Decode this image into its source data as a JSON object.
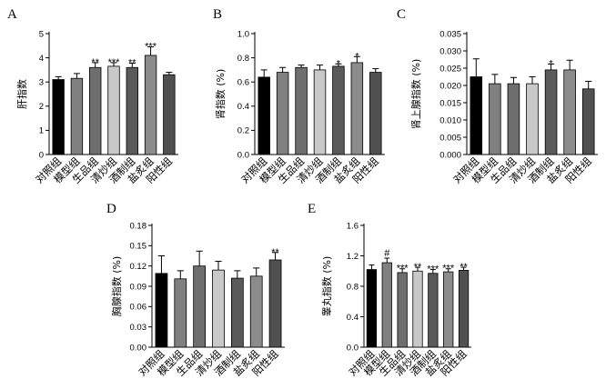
{
  "colors": [
    "#000000",
    "#808080",
    "#6e6e6e",
    "#c8c8c8",
    "#5a5a5a",
    "#8c8c8c",
    "#505050"
  ],
  "chart_data": [
    {
      "type": "bar",
      "panel": "A",
      "ylabel": "肝指数",
      "categories": [
        "对照组",
        "模型组",
        "生品组",
        "清炒组",
        "酒制组",
        "盐炙组",
        "阳性组"
      ],
      "values": [
        3.1,
        3.15,
        3.6,
        3.65,
        3.6,
        4.1,
        3.3
      ],
      "errors": [
        0.12,
        0.2,
        0.2,
        0.15,
        0.18,
        0.35,
        0.1
      ],
      "significance": [
        "",
        "",
        "**",
        "***",
        "**",
        "***",
        ""
      ],
      "ylim": [
        0,
        5
      ],
      "yticks": [
        0,
        1,
        2,
        3,
        4,
        5
      ],
      "ytick_labels": [
        "0",
        "1",
        "2",
        "3",
        "4",
        "5"
      ]
    },
    {
      "type": "bar",
      "panel": "B",
      "ylabel": "肾指数 (%)",
      "categories": [
        "对照组",
        "模型组",
        "生品组",
        "清炒组",
        "酒制组",
        "盐炙组",
        "阳性组"
      ],
      "values": [
        0.64,
        0.68,
        0.72,
        0.7,
        0.73,
        0.76,
        0.68
      ],
      "errors": [
        0.06,
        0.04,
        0.02,
        0.04,
        0.02,
        0.05,
        0.03
      ],
      "significance": [
        "",
        "",
        "",
        "",
        "*",
        "*",
        ""
      ],
      "ylim": [
        0,
        1.0
      ],
      "yticks": [
        0,
        0.2,
        0.4,
        0.6,
        0.8,
        1.0
      ],
      "ytick_labels": [
        "0.0",
        "0.2",
        "0.4",
        "0.6",
        "0.8",
        "1.0"
      ]
    },
    {
      "type": "bar",
      "panel": "C",
      "ylabel": "肾上腺指数 (%)",
      "categories": [
        "对照组",
        "模型组",
        "生品组",
        "清炒组",
        "酒制组",
        "盐炙组",
        "阳性组"
      ],
      "values": [
        0.0225,
        0.0205,
        0.0205,
        0.0205,
        0.0245,
        0.0245,
        0.019
      ],
      "errors": [
        0.0052,
        0.0027,
        0.0018,
        0.002,
        0.0017,
        0.0028,
        0.0022
      ],
      "significance": [
        "",
        "",
        "",
        "",
        "*",
        "",
        ""
      ],
      "ylim": [
        0,
        0.035
      ],
      "yticks": [
        0,
        0.005,
        0.01,
        0.015,
        0.02,
        0.025,
        0.03,
        0.035
      ],
      "ytick_labels": [
        "0.000",
        "0.005",
        "0.010",
        "0.015",
        "0.020",
        "0.025",
        "0.030",
        "0.035"
      ]
    },
    {
      "type": "bar",
      "panel": "D",
      "ylabel": "胸腺指数 (%)",
      "categories": [
        "对照组",
        "模型组",
        "生品组",
        "清炒组",
        "酒制组",
        "盐炙组",
        "阳性组"
      ],
      "values": [
        0.109,
        0.101,
        0.12,
        0.114,
        0.102,
        0.105,
        0.129
      ],
      "errors": [
        0.026,
        0.012,
        0.022,
        0.013,
        0.011,
        0.012,
        0.011
      ],
      "significance": [
        "",
        "",
        "",
        "",
        "",
        "",
        "**"
      ],
      "ylim": [
        0,
        0.18
      ],
      "yticks": [
        0,
        0.03,
        0.06,
        0.09,
        0.12,
        0.15,
        0.18
      ],
      "ytick_labels": [
        "0.00",
        "0.03",
        "0.06",
        "0.09",
        "0.12",
        "0.15",
        "0.18"
      ]
    },
    {
      "type": "bar",
      "panel": "E",
      "ylabel": "睾丸指数 (%)",
      "categories": [
        "对照组",
        "模型组",
        "生品组",
        "清炒组",
        "酒制组",
        "盐炙组",
        "阳性组"
      ],
      "values": [
        1.02,
        1.11,
        0.98,
        1.0,
        0.97,
        0.99,
        1.01
      ],
      "errors": [
        0.06,
        0.06,
        0.05,
        0.05,
        0.05,
        0.04,
        0.04
      ],
      "significance": [
        "",
        "#",
        "***",
        "**",
        "***",
        "***",
        "**"
      ],
      "ylim": [
        0,
        1.6
      ],
      "yticks": [
        0,
        0.4,
        0.8,
        1.2,
        1.6
      ],
      "ytick_labels": [
        "0.0",
        "0.4",
        "0.8",
        "1.2",
        "1.6"
      ]
    }
  ]
}
